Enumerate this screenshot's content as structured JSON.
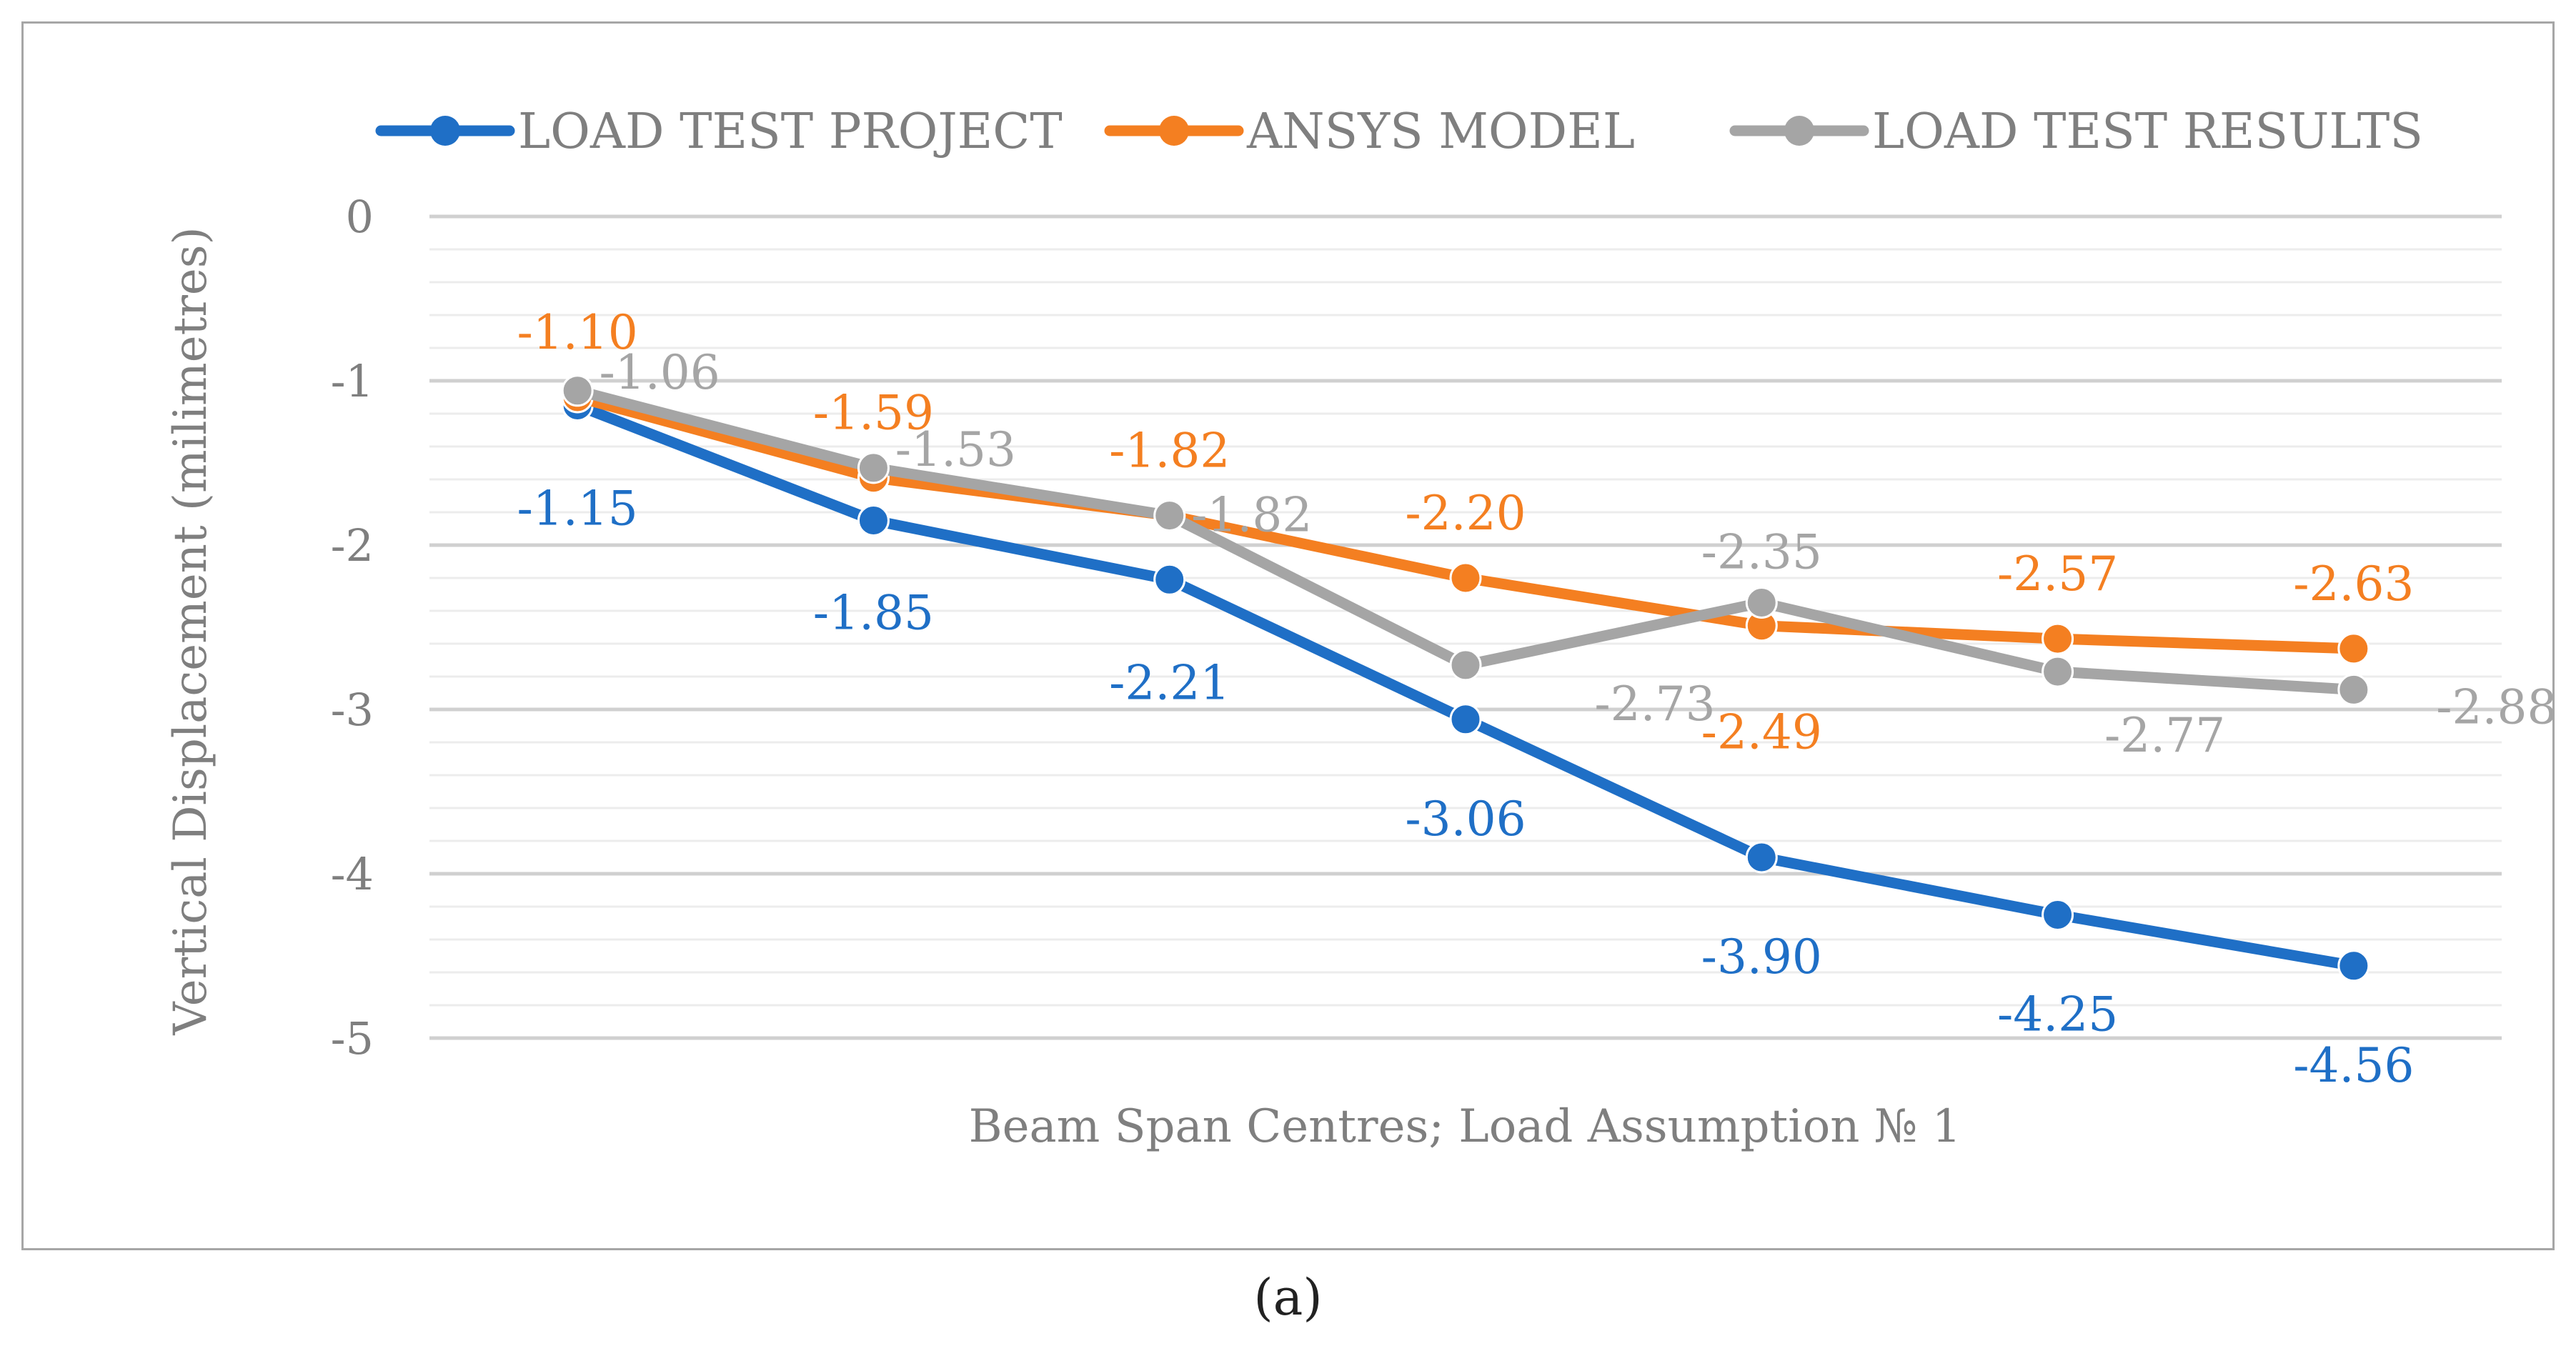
{
  "caption": "(a)",
  "chart_data": {
    "type": "line",
    "title": "",
    "xlabel": "Beam Span Centres; Load Assumption № 1",
    "ylabel": "Vertical Displacement (milimetres)",
    "ylim": [
      -5,
      0
    ],
    "yticks": [
      0,
      -1,
      -2,
      -3,
      -4,
      -5
    ],
    "ytick_labels": [
      "0",
      "-1",
      "-2",
      "-3",
      "-4",
      "-5"
    ],
    "grid": true,
    "legend_position": "top",
    "x": [
      1,
      2,
      3,
      4,
      5,
      6,
      7
    ],
    "series": [
      {
        "name": "LOAD TEST PROJECT",
        "color": "#1f6fc6",
        "values": [
          -1.15,
          -1.85,
          -2.21,
          -3.06,
          -3.9,
          -4.25,
          -4.56
        ],
        "labels": [
          "-1.15",
          "-1.85",
          "-2.21",
          "-3.06",
          "-3.90",
          "-4.25",
          "-4.56"
        ]
      },
      {
        "name": "ANSYS MODEL",
        "color": "#f47f21",
        "values": [
          -1.1,
          -1.59,
          -1.82,
          -2.2,
          -2.49,
          -2.57,
          -2.63
        ],
        "labels": [
          "-1.10",
          "-1.59",
          "-1.82",
          "-2.20",
          "-2.49",
          "-2.57",
          "-2.63"
        ]
      },
      {
        "name": "LOAD TEST RESULTS",
        "color": "#a5a5a5",
        "values": [
          -1.06,
          -1.53,
          -1.82,
          -2.73,
          -2.35,
          -2.77,
          -2.88
        ],
        "labels": [
          "-1.06",
          "-1.53",
          "-1.82",
          "-2.73",
          "-2.35",
          "-2.77",
          "-2.88"
        ]
      }
    ]
  }
}
